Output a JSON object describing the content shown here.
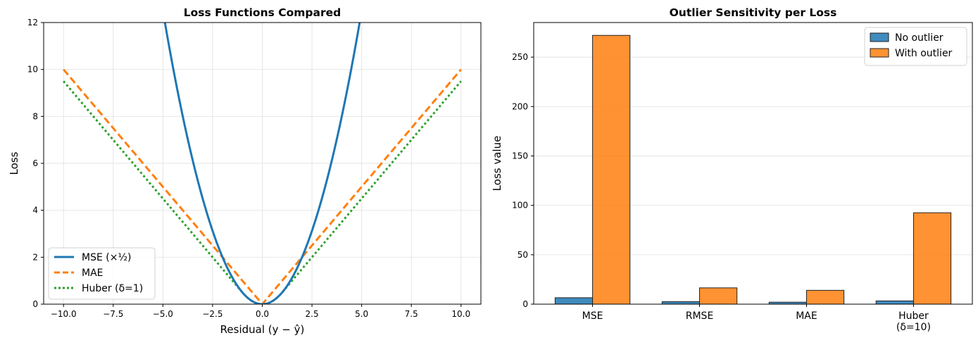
{
  "chart_data": [
    {
      "type": "line",
      "title": "Loss Functions Compared",
      "xlabel": "Residual  (y − ŷ)",
      "ylabel": "Loss",
      "xlim": [
        -11,
        11
      ],
      "ylim": [
        0,
        12
      ],
      "grid": true,
      "xticks": [
        -10,
        -7.5,
        -5,
        -2.5,
        0,
        2.5,
        5,
        7.5,
        10
      ],
      "xtick_labels": [
        "−10.0",
        "−7.5",
        "−5.0",
        "−2.5",
        "0.0",
        "2.5",
        "5.0",
        "7.5",
        "10.0"
      ],
      "yticks": [
        0,
        2,
        4,
        6,
        8,
        10,
        12
      ],
      "ytick_labels": [
        "0",
        "2",
        "4",
        "6",
        "8",
        "10",
        "12"
      ],
      "x_range": [
        -10,
        10
      ],
      "series": [
        {
          "name": "MSE (×½)",
          "formula": "0.5*r^2",
          "color": "#1f77b4",
          "style": "solid"
        },
        {
          "name": "MAE",
          "formula": "|r|",
          "color": "#ff7f0e",
          "style": "dashed"
        },
        {
          "name": "Huber (δ=1)",
          "formula": "huber(r, delta=1)",
          "delta": 1,
          "color": "#2ca02c",
          "style": "dotted"
        }
      ],
      "legend_position": "lower-left"
    },
    {
      "type": "bar",
      "title": "Outlier Sensitivity per Loss",
      "xlabel": "",
      "ylabel": "Loss value",
      "categories": [
        "MSE",
        "RMSE",
        "MAE",
        "Huber\n(δ=10)"
      ],
      "category_lines": [
        [
          "MSE"
        ],
        [
          "RMSE"
        ],
        [
          "MAE"
        ],
        [
          "Huber",
          "(δ=10)"
        ]
      ],
      "ylim": [
        0,
        285
      ],
      "yticks": [
        0,
        50,
        100,
        150,
        200,
        250
      ],
      "ytick_labels": [
        "0",
        "50",
        "100",
        "150",
        "200",
        "250"
      ],
      "grid": true,
      "series": [
        {
          "name": "No outlier",
          "values": [
            6.5,
            2.5,
            2.0,
            3.3
          ],
          "color": "#1f77b4"
        },
        {
          "name": "With outlier",
          "values": [
            272,
            16.5,
            14.0,
            92.5
          ],
          "color": "#ff7f0e"
        }
      ],
      "legend_position": "upper-right"
    }
  ]
}
